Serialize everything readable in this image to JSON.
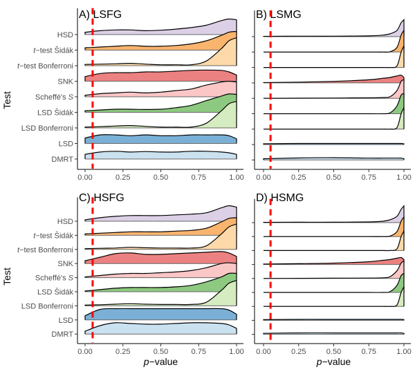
{
  "chart_data": {
    "type": "ridgeline",
    "ylabel": "Test",
    "xlabel": {
      "italic": "p",
      "rest": "−value"
    },
    "xlim": [
      0,
      1
    ],
    "xticks": [
      "0.00",
      "0.25",
      "0.50",
      "0.75",
      "1.00"
    ],
    "threshold_line": {
      "x": 0.05,
      "color": "#FF0000",
      "style": "dashed"
    },
    "tests": [
      {
        "pre": "",
        "main": "HSD",
        "post": "",
        "color": "#DCD0E6"
      },
      {
        "pre": "t",
        "main": "−test Šidák",
        "post": "",
        "color": "#F9B46E"
      },
      {
        "pre": "t",
        "main": "−test Bonferroni",
        "post": "",
        "color": "#FDD9A9"
      },
      {
        "pre": "",
        "main": "SNK",
        "post": "",
        "color": "#EC8181"
      },
      {
        "pre": "",
        "main": "Scheffé's ",
        "post": "S",
        "color": "#FBC6C6"
      },
      {
        "pre": "",
        "main": "LSD Šidák",
        "post": "",
        "color": "#8DC980"
      },
      {
        "pre": "",
        "main": "LSD Bonferroni",
        "post": "",
        "color": "#D5EBC0"
      },
      {
        "pre": "",
        "main": "LSD",
        "post": "",
        "color": "#7BB0D6"
      },
      {
        "pre": "",
        "main": "DMRT",
        "post": "",
        "color": "#CAE1F0"
      }
    ],
    "panels": [
      {
        "title": "A) LSFG",
        "x": [
          0,
          0.1,
          0.2,
          0.3,
          0.4,
          0.5,
          0.6,
          0.7,
          0.8,
          0.9,
          0.95,
          1.0
        ],
        "densities": [
          [
            0.15,
            0.25,
            0.3,
            0.3,
            0.25,
            0.28,
            0.35,
            0.45,
            0.6,
            0.9,
            1.0,
            0.95
          ],
          [
            0.15,
            0.2,
            0.25,
            0.3,
            0.25,
            0.25,
            0.3,
            0.4,
            0.6,
            0.95,
            1.15,
            1.2
          ],
          [
            0.08,
            0.1,
            0.12,
            0.15,
            0.1,
            0.06,
            0.06,
            0.06,
            0.3,
            1.1,
            1.6,
            1.8
          ],
          [
            0.3,
            0.5,
            0.55,
            0.55,
            0.6,
            0.6,
            0.65,
            0.7,
            0.72,
            0.7,
            0.6,
            0.4
          ],
          [
            0.1,
            0.2,
            0.25,
            0.3,
            0.25,
            0.3,
            0.4,
            0.5,
            0.75,
            0.95,
            1.0,
            0.95
          ],
          [
            0.1,
            0.15,
            0.2,
            0.2,
            0.18,
            0.2,
            0.3,
            0.45,
            0.75,
            1.05,
            1.18,
            1.15
          ],
          [
            0.05,
            0.08,
            0.12,
            0.15,
            0.1,
            0.05,
            0.05,
            0.05,
            0.3,
            1.1,
            1.55,
            1.7
          ],
          [
            0.35,
            0.55,
            0.55,
            0.5,
            0.55,
            0.5,
            0.5,
            0.55,
            0.55,
            0.55,
            0.5,
            0.3
          ],
          [
            0.3,
            0.45,
            0.5,
            0.45,
            0.48,
            0.45,
            0.45,
            0.5,
            0.5,
            0.45,
            0.4,
            0.3
          ]
        ]
      },
      {
        "title": "B) LSMG",
        "x": [
          0,
          0.25,
          0.5,
          0.75,
          0.85,
          0.9,
          0.95,
          0.98,
          1.0
        ],
        "densities": [
          [
            0.02,
            0.03,
            0.03,
            0.05,
            0.1,
            0.18,
            0.4,
            0.9,
            1.1
          ],
          [
            0,
            0,
            0,
            0,
            0,
            0.02,
            0.3,
            1.1,
            1.4
          ],
          [
            0,
            0,
            0,
            0,
            0,
            0,
            0.1,
            1.0,
            1.4
          ],
          [
            0.02,
            0.05,
            0.1,
            0.2,
            0.3,
            0.35,
            0.45,
            0.5,
            0.35
          ],
          [
            0,
            0.01,
            0.02,
            0.03,
            0.05,
            0.1,
            0.5,
            1.1,
            1.2
          ],
          [
            0,
            0,
            0,
            0,
            0,
            0.05,
            0.5,
            1.2,
            1.3
          ],
          [
            0,
            0,
            0,
            0,
            0,
            0,
            0.1,
            1.0,
            1.4
          ],
          [
            0.05,
            0.07,
            0.07,
            0.07,
            0.07,
            0.07,
            0.07,
            0.07,
            0.05
          ],
          [
            0.08,
            0.13,
            0.15,
            0.12,
            0.12,
            0.12,
            0.12,
            0.12,
            0.08
          ]
        ]
      },
      {
        "title": "C) HSFG",
        "x": [
          0,
          0.1,
          0.2,
          0.3,
          0.4,
          0.5,
          0.6,
          0.7,
          0.8,
          0.9,
          0.95,
          1.0
        ],
        "densities": [
          [
            0.1,
            0.25,
            0.35,
            0.4,
            0.4,
            0.4,
            0.45,
            0.5,
            0.6,
            0.95,
            1.1,
            1.0
          ],
          [
            0.1,
            0.15,
            0.2,
            0.25,
            0.25,
            0.25,
            0.3,
            0.35,
            0.5,
            0.95,
            1.2,
            1.25
          ],
          [
            0.05,
            0.08,
            0.1,
            0.15,
            0.12,
            0.1,
            0.1,
            0.1,
            0.25,
            1.1,
            1.6,
            1.8
          ],
          [
            0.2,
            0.45,
            0.7,
            0.75,
            0.65,
            0.65,
            0.7,
            0.75,
            0.8,
            0.85,
            0.75,
            0.5
          ],
          [
            0.05,
            0.15,
            0.25,
            0.3,
            0.3,
            0.35,
            0.4,
            0.5,
            0.7,
            1.0,
            1.05,
            1.0
          ],
          [
            0.05,
            0.15,
            0.25,
            0.3,
            0.3,
            0.3,
            0.35,
            0.45,
            0.7,
            1.05,
            1.3,
            1.3
          ],
          [
            0.05,
            0.08,
            0.12,
            0.15,
            0.12,
            0.1,
            0.1,
            0.1,
            0.25,
            1.1,
            1.6,
            1.8
          ],
          [
            0.3,
            0.75,
            0.8,
            0.8,
            0.8,
            0.8,
            0.8,
            0.8,
            0.8,
            0.8,
            0.7,
            0.4
          ],
          [
            0.2,
            0.6,
            0.8,
            0.75,
            0.7,
            0.7,
            0.75,
            0.8,
            0.8,
            0.75,
            0.65,
            0.4
          ]
        ]
      },
      {
        "title": "D) HSMG",
        "x": [
          0,
          0.25,
          0.5,
          0.75,
          0.85,
          0.9,
          0.95,
          0.98,
          1.0
        ],
        "densities": [
          [
            0.02,
            0.03,
            0.03,
            0.05,
            0.1,
            0.2,
            0.45,
            0.95,
            1.2
          ],
          [
            0,
            0,
            0,
            0,
            0,
            0.03,
            0.35,
            1.1,
            1.4
          ],
          [
            0,
            0,
            0,
            0,
            0,
            0,
            0.12,
            1.0,
            1.4
          ],
          [
            0.03,
            0.06,
            0.1,
            0.2,
            0.3,
            0.35,
            0.45,
            0.5,
            0.35
          ],
          [
            0,
            0.01,
            0.02,
            0.03,
            0.05,
            0.12,
            0.55,
            1.1,
            1.25
          ],
          [
            0,
            0,
            0,
            0,
            0,
            0.05,
            0.5,
            1.2,
            1.35
          ],
          [
            0,
            0,
            0,
            0,
            0,
            0,
            0.1,
            1.0,
            1.4
          ],
          [
            0.05,
            0.07,
            0.07,
            0.07,
            0.07,
            0.07,
            0.07,
            0.07,
            0.05
          ],
          [
            0.07,
            0.1,
            0.1,
            0.1,
            0.1,
            0.1,
            0.1,
            0.1,
            0.07
          ]
        ]
      }
    ]
  }
}
